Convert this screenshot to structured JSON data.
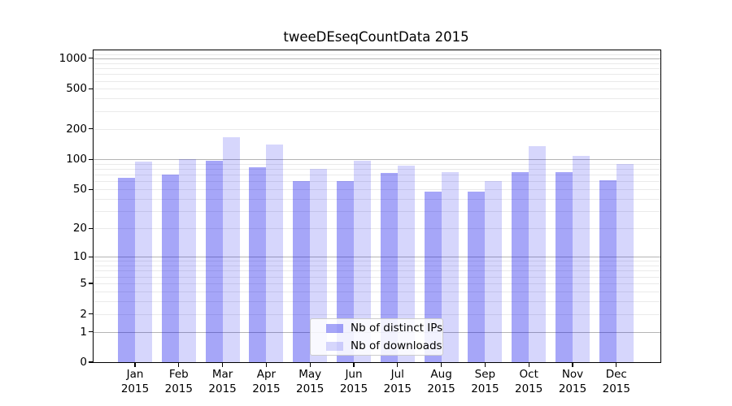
{
  "chart_data": {
    "type": "bar",
    "title": "tweeDEseqCountData 2015",
    "categories": [
      "Jan",
      "Feb",
      "Mar",
      "Apr",
      "May",
      "Jun",
      "Jul",
      "Aug",
      "Sep",
      "Oct",
      "Nov",
      "Dec"
    ],
    "x_tick_year_line": "2015",
    "series": [
      {
        "name": "Nb of distinct IPs",
        "color": "rgba(0,0,235,0.35)",
        "values": [
          65,
          70,
          96,
          83,
          60,
          61,
          73,
          47,
          47,
          74,
          74,
          62
        ]
      },
      {
        "name": "Nb of downloads",
        "color": "rgba(0,0,235,0.16)",
        "values": [
          94,
          100,
          165,
          140,
          80,
          96,
          87,
          75,
          60,
          135,
          108,
          90
        ]
      }
    ],
    "yscale": "log10(value+1)",
    "y_ticks": [
      0,
      1,
      2,
      5,
      10,
      20,
      50,
      100,
      200,
      500,
      1000
    ],
    "ylim": [
      0,
      1200
    ],
    "grid": true,
    "grid_major_values": [
      1,
      10,
      100,
      1000
    ],
    "grid_major_color": "#b4b4b4",
    "grid_minor_color": "#eaeaea",
    "legend_position": "bottom-center",
    "axis_color": "#000000",
    "background": "#ffffff"
  }
}
